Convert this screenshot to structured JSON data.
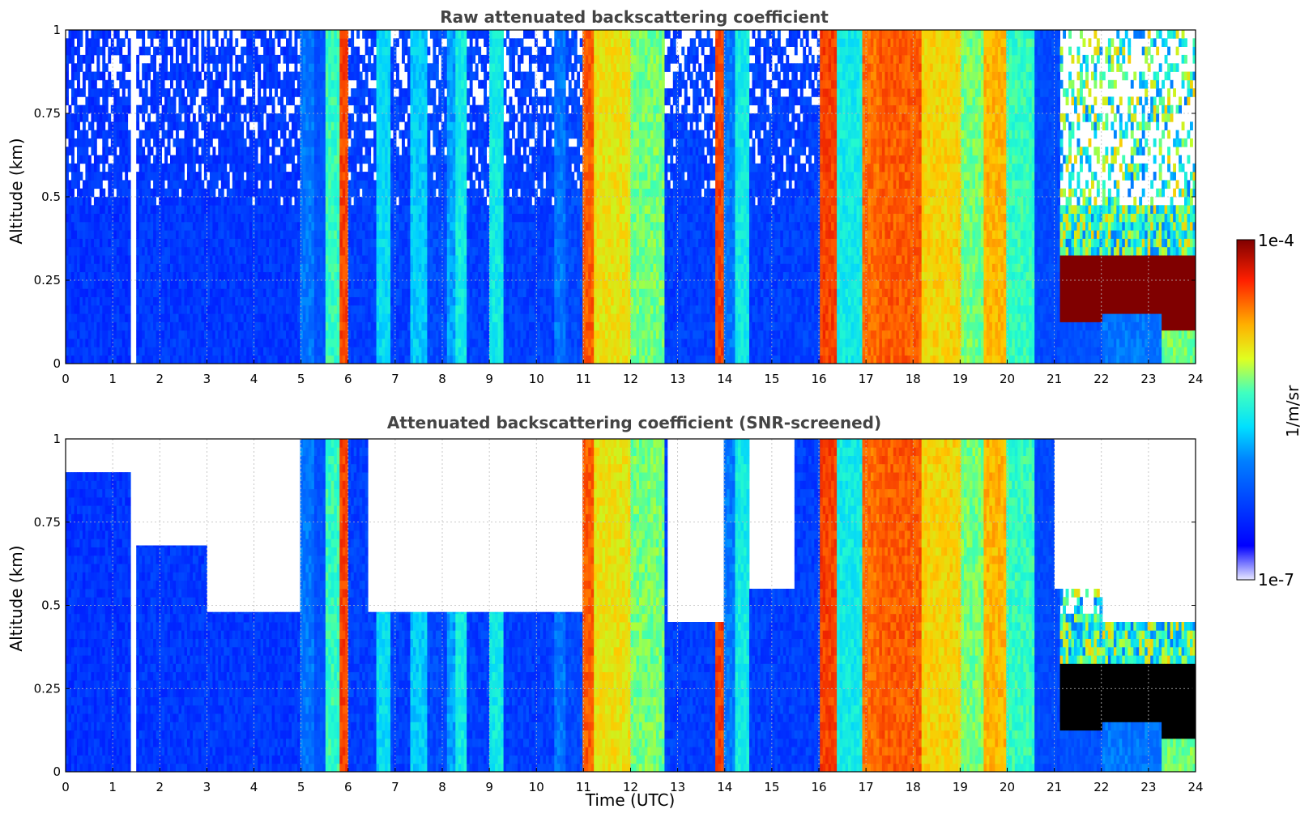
{
  "chart_data": [
    {
      "type": "heatmap",
      "title": "Raw attenuated backscattering coefficient",
      "xlabel": "",
      "ylabel": "Altitude (km)",
      "xlim": [
        0,
        24
      ],
      "ylim": [
        0,
        1
      ],
      "x_ticks": [
        "0",
        "1",
        "2",
        "3",
        "4",
        "5",
        "6",
        "7",
        "8",
        "9",
        "10",
        "11",
        "12",
        "13",
        "14",
        "15",
        "16",
        "17",
        "18",
        "19",
        "20",
        "21",
        "22",
        "23",
        "24"
      ],
      "y_ticks": [
        "0",
        "0.25",
        "0.5",
        "0.75",
        "1"
      ],
      "grid": true,
      "columns_utc": [
        {
          "t": [
            0.0,
            1.4
          ],
          "level": 0.14,
          "noise": "high"
        },
        {
          "t": [
            1.4,
            1.5
          ],
          "level": 0.0,
          "noise": "gap"
        },
        {
          "t": [
            1.5,
            5.0
          ],
          "level": 0.15,
          "noise": "high"
        },
        {
          "t": [
            5.0,
            5.3
          ],
          "level": 0.3
        },
        {
          "t": [
            5.3,
            5.5
          ],
          "level": 0.22
        },
        {
          "t": [
            5.5,
            5.8
          ],
          "level": 0.5
        },
        {
          "t": [
            5.8,
            6.0
          ],
          "level": 0.85
        },
        {
          "t": [
            6.0,
            6.6
          ],
          "level": 0.17,
          "noise": "high"
        },
        {
          "t": [
            6.6,
            6.9
          ],
          "level": 0.42
        },
        {
          "t": [
            6.9,
            7.3
          ],
          "level": 0.17,
          "noise": "high"
        },
        {
          "t": [
            7.3,
            7.7
          ],
          "level": 0.4
        },
        {
          "t": [
            7.7,
            8.1
          ],
          "level": 0.2,
          "noise": "high"
        },
        {
          "t": [
            8.1,
            8.3
          ],
          "level": 0.35
        },
        {
          "t": [
            8.3,
            8.5
          ],
          "level": 0.45
        },
        {
          "t": [
            8.5,
            9.0
          ],
          "level": 0.17,
          "noise": "high"
        },
        {
          "t": [
            9.0,
            9.3
          ],
          "level": 0.45
        },
        {
          "t": [
            9.3,
            10.4
          ],
          "level": 0.17,
          "noise": "high"
        },
        {
          "t": [
            10.4,
            10.6
          ],
          "level": 0.3
        },
        {
          "t": [
            10.6,
            11.0
          ],
          "level": 0.2,
          "noise": "high"
        },
        {
          "t": [
            11.0,
            11.2
          ],
          "level": 0.82
        },
        {
          "t": [
            11.2,
            12.0
          ],
          "level": 0.66
        },
        {
          "t": [
            12.0,
            12.7
          ],
          "level": 0.55
        },
        {
          "t": [
            12.7,
            13.8
          ],
          "level": 0.17,
          "noise": "high"
        },
        {
          "t": [
            13.8,
            14.0
          ],
          "level": 0.85
        },
        {
          "t": [
            14.0,
            14.2
          ],
          "level": 0.3
        },
        {
          "t": [
            14.2,
            14.5
          ],
          "level": 0.45
        },
        {
          "t": [
            14.5,
            16.0
          ],
          "level": 0.17,
          "noise": "high"
        },
        {
          "t": [
            16.0,
            16.4
          ],
          "level": 0.85
        },
        {
          "t": [
            16.4,
            16.9
          ],
          "level": 0.45
        },
        {
          "t": [
            16.9,
            17.3
          ],
          "level": 0.8
        },
        {
          "t": [
            17.3,
            18.2
          ],
          "level": 0.82
        },
        {
          "t": [
            18.2,
            19.0
          ],
          "level": 0.68
        },
        {
          "t": [
            19.0,
            19.5
          ],
          "level": 0.55
        },
        {
          "t": [
            19.5,
            20.0
          ],
          "level": 0.72
        },
        {
          "t": [
            20.0,
            20.6
          ],
          "level": 0.5
        },
        {
          "t": [
            20.6,
            21.1
          ],
          "level": 0.2
        },
        {
          "t": [
            21.1,
            22.0
          ],
          "level": 0.22,
          "layer": [
            0.12,
            0.32
          ]
        },
        {
          "t": [
            22.0,
            23.3
          ],
          "level": 0.3,
          "layer": [
            0.15,
            0.32
          ]
        },
        {
          "t": [
            23.3,
            24.0
          ],
          "level": 0.55,
          "layer": [
            0.1,
            0.32
          ]
        }
      ]
    },
    {
      "type": "heatmap",
      "title": "Attenuated backscattering coefficient (SNR-screened)",
      "xlabel": "Time (UTC)",
      "ylabel": "Altitude (km)",
      "xlim": [
        0,
        24
      ],
      "ylim": [
        0,
        1
      ],
      "x_ticks": [
        "0",
        "1",
        "2",
        "3",
        "4",
        "5",
        "6",
        "7",
        "8",
        "9",
        "10",
        "11",
        "12",
        "13",
        "14",
        "15",
        "16",
        "17",
        "18",
        "19",
        "20",
        "21",
        "22",
        "23",
        "24"
      ],
      "y_ticks": [
        "0",
        "0.25",
        "0.5",
        "0.75",
        "1"
      ],
      "grid": true,
      "screened_above_km": [
        {
          "t": [
            0.0,
            1.5
          ],
          "h": 0.9
        },
        {
          "t": [
            1.5,
            3.0
          ],
          "h": 0.68
        },
        {
          "t": [
            3.0,
            5.0
          ],
          "h": 0.48
        },
        {
          "t": [
            5.0,
            6.4
          ],
          "h": 1.0
        },
        {
          "t": [
            6.4,
            11.0
          ],
          "h": 0.48
        },
        {
          "t": [
            11.0,
            12.8
          ],
          "h": 1.0
        },
        {
          "t": [
            12.8,
            14.0
          ],
          "h": 0.45
        },
        {
          "t": [
            14.0,
            14.5
          ],
          "h": 1.0
        },
        {
          "t": [
            14.5,
            15.5
          ],
          "h": 0.55
        },
        {
          "t": [
            15.5,
            21.0
          ],
          "h": 1.0
        },
        {
          "t": [
            21.0,
            22.0
          ],
          "h": 0.55
        },
        {
          "t": [
            22.0,
            24.0
          ],
          "h": 0.45
        }
      ]
    }
  ],
  "colorbar": {
    "label": "1/m/sr",
    "max_label": "1e-4",
    "min_label": "1e-7",
    "colormap": "jet",
    "scale": "log",
    "range": [
      1e-07,
      0.0001
    ]
  },
  "colors": {
    "title": "#444444",
    "grid": "#bbbbbb",
    "background": "#ffffff"
  }
}
